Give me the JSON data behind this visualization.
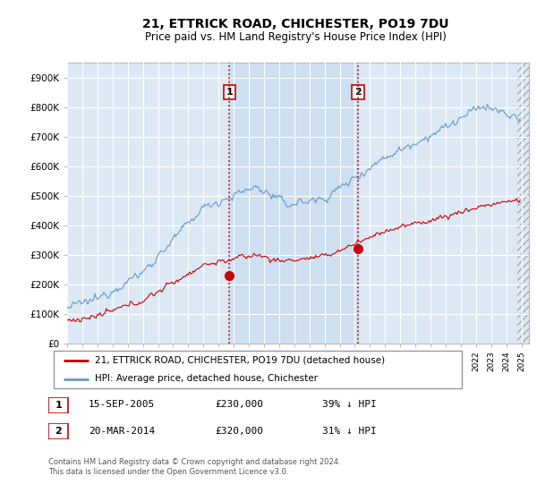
{
  "title": "21, ETTRICK ROAD, CHICHESTER, PO19 7DU",
  "subtitle": "Price paid vs. HM Land Registry's House Price Index (HPI)",
  "plot_bg_color": "#dce9f5",
  "ylabel_ticks": [
    "£0",
    "£100K",
    "£200K",
    "£300K",
    "£400K",
    "£500K",
    "£600K",
    "£700K",
    "£800K",
    "£900K"
  ],
  "ytick_values": [
    0,
    100000,
    200000,
    300000,
    400000,
    500000,
    600000,
    700000,
    800000,
    900000
  ],
  "ylim": [
    0,
    950000
  ],
  "xlim_start": 1995.0,
  "xlim_end": 2025.5,
  "red_line_color": "#cc0000",
  "blue_line_color": "#6699cc",
  "vline_color": "#cc0000",
  "transaction1_x": 2005.71,
  "transaction1_y": 230000,
  "transaction2_x": 2014.21,
  "transaction2_y": 320000,
  "legend_red_label": "21, ETTRICK ROAD, CHICHESTER, PO19 7DU (detached house)",
  "legend_blue_label": "HPI: Average price, detached house, Chichester",
  "table_row1": [
    "1",
    "15-SEP-2005",
    "£230,000",
    "39% ↓ HPI"
  ],
  "table_row2": [
    "2",
    "20-MAR-2014",
    "£320,000",
    "31% ↓ HPI"
  ],
  "footer": "Contains HM Land Registry data © Crown copyright and database right 2024.\nThis data is licensed under the Open Government Licence v3.0.",
  "grid_color": "#ffffff",
  "shade_between_color": "#ccddef",
  "hatch_start": 2024.75,
  "marker_box_color": "#cc0000"
}
